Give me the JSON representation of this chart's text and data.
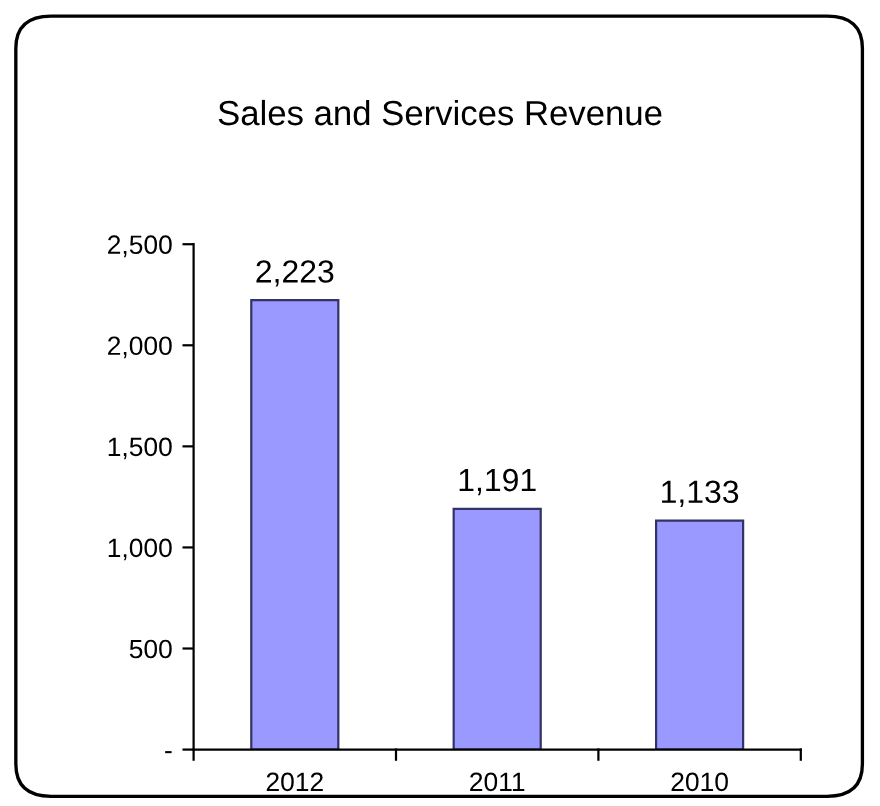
{
  "chart_data": {
    "type": "bar",
    "title": "Sales and Services Revenue",
    "categories": [
      "2012",
      "2011",
      "2010"
    ],
    "values": [
      2223,
      1191,
      1133
    ],
    "value_labels": [
      "2,223",
      "1,191",
      "1,133"
    ],
    "color": "#9999ff",
    "ylim": [
      0,
      2500
    ],
    "yticks": [
      {
        "value": 0,
        "label": "-"
      },
      {
        "value": 500,
        "label": "500"
      },
      {
        "value": 1000,
        "label": "1,000"
      },
      {
        "value": 1500,
        "label": "1,500"
      },
      {
        "value": 2000,
        "label": "2,000"
      },
      {
        "value": 2500,
        "label": "2,500"
      }
    ],
    "grid": false,
    "legend": false
  }
}
